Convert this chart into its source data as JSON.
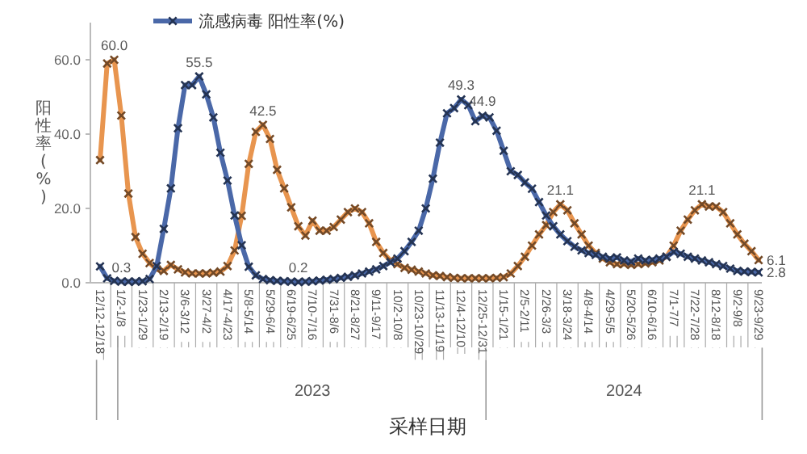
{
  "chart_data": {
    "type": "line",
    "xlabel": "采样日期",
    "ylabel": "阳性率(%)",
    "categories": [
      "12/12-12/18",
      null,
      null,
      "1/2-1/8",
      null,
      null,
      "1/23-1/29",
      null,
      null,
      "2/13-2/19",
      null,
      null,
      "3/6-3/12",
      null,
      null,
      "3/27-4/2",
      null,
      null,
      "4/17-4/23",
      null,
      null,
      "5/8-5/14",
      null,
      null,
      "5/29-6/4",
      null,
      null,
      "6/19-6/25",
      null,
      null,
      "7/10-7/16",
      null,
      null,
      "7/31-8/6",
      null,
      null,
      "8/21-8/27",
      null,
      null,
      "9/11-9/17",
      null,
      null,
      "10/2-10/8",
      null,
      null,
      "10/23-10/29",
      null,
      null,
      "11/13-11/19",
      null,
      null,
      "12/4-12/10",
      null,
      null,
      "12/25-12/31",
      null,
      null,
      "1/15-1/21",
      null,
      null,
      "2/5-2/11",
      null,
      null,
      "2/26-3/3",
      null,
      null,
      "3/18-3/24",
      null,
      null,
      "4/8-4/14",
      null,
      null,
      "4/29-5/5",
      null,
      null,
      "5/20-5/26",
      null,
      null,
      "6/10-6/16",
      null,
      null,
      "7/1-7/7",
      null,
      null,
      "7/22-7/28",
      null,
      null,
      "8/12-8/18",
      null,
      null,
      "9/2-9/8",
      null,
      null,
      "9/23-9/29"
    ],
    "series": [
      {
        "color": "#e8954f",
        "values": [
          33,
          59,
          60.0,
          45,
          24,
          12.3,
          7.8,
          5.3,
          3.6,
          3.2,
          4.8,
          3.6,
          2.8,
          2.5,
          2.5,
          2.5,
          2.7,
          3.0,
          4.5,
          8.7,
          18,
          32,
          40.6,
          42.5,
          38.7,
          30.4,
          25.4,
          20.3,
          15.2,
          12.7,
          16.7,
          14,
          14,
          15,
          17,
          19,
          20,
          19,
          16,
          11,
          8,
          6,
          5,
          4,
          3.5,
          3,
          2.5,
          2,
          1.8,
          1.5,
          1.3,
          1.2,
          1.2,
          1.2,
          1.2,
          1.2,
          1.3,
          1.5,
          2.5,
          4.5,
          7,
          10,
          13,
          15.5,
          19,
          21.1,
          19.5,
          16,
          13,
          10,
          8,
          6.5,
          5.5,
          5,
          5,
          4.8,
          5,
          5.2,
          5.5,
          6,
          7,
          10,
          14,
          17,
          19.5,
          21.1,
          20.5,
          20.5,
          19,
          16,
          13,
          10.5,
          8.5,
          6.1
        ],
        "value_labels": [
          null,
          null,
          "60.0",
          null,
          null,
          null,
          null,
          null,
          null,
          null,
          null,
          null,
          null,
          null,
          null,
          null,
          null,
          null,
          null,
          null,
          null,
          null,
          null,
          "42.5",
          null,
          null,
          null,
          null,
          null,
          null,
          null,
          null,
          null,
          null,
          null,
          null,
          null,
          null,
          null,
          null,
          null,
          null,
          null,
          null,
          null,
          null,
          null,
          null,
          null,
          null,
          null,
          null,
          null,
          null,
          null,
          null,
          null,
          null,
          null,
          null,
          null,
          null,
          null,
          null,
          null,
          "21.1",
          null,
          null,
          null,
          null,
          null,
          null,
          null,
          null,
          null,
          null,
          null,
          null,
          null,
          null,
          null,
          null,
          null,
          null,
          null,
          "21.1",
          null,
          null,
          null,
          null,
          null,
          null,
          null,
          "6.1"
        ]
      },
      {
        "name": "流感病毒 阳性率(%)",
        "color": "#4a68a8",
        "values": [
          4.4,
          1.2,
          0.5,
          0.3,
          0.3,
          0.3,
          0.4,
          1,
          4.5,
          14.5,
          25.4,
          41.6,
          53.2,
          53.2,
          55.5,
          50.7,
          44.5,
          35,
          27.5,
          18.1,
          10.1,
          4.3,
          2,
          1,
          0.7,
          0.5,
          0.4,
          0.3,
          0.2,
          0.3,
          0.4,
          0.6,
          0.8,
          1,
          1.3,
          1.6,
          2,
          2.5,
          3,
          3.6,
          4.5,
          5.5,
          6.5,
          8.5,
          11,
          14,
          20,
          28,
          37.7,
          45.6,
          47,
          49.3,
          47.8,
          43.5,
          44.9,
          44.5,
          40.9,
          35.5,
          30,
          29,
          27,
          25.3,
          21.7,
          18.1,
          15.2,
          13,
          11.2,
          9.7,
          8.7,
          8,
          7.5,
          7,
          6.5,
          6.8,
          6,
          5.7,
          6.5,
          6,
          6.2,
          6.5,
          7,
          8.3,
          7.8,
          7,
          6.5,
          6,
          5.5,
          5,
          4.5,
          3.8,
          3.2,
          3,
          2.9,
          2.8
        ],
        "value_labels": [
          null,
          null,
          null,
          "0.3",
          null,
          null,
          null,
          null,
          null,
          null,
          null,
          null,
          null,
          null,
          "55.5",
          null,
          null,
          null,
          null,
          null,
          null,
          null,
          null,
          null,
          null,
          null,
          null,
          null,
          "0.2",
          null,
          null,
          null,
          null,
          null,
          null,
          null,
          null,
          null,
          null,
          null,
          null,
          null,
          null,
          null,
          null,
          null,
          null,
          null,
          null,
          null,
          null,
          "49.3",
          null,
          null,
          "44.9",
          null,
          null,
          null,
          null,
          null,
          null,
          null,
          null,
          null,
          null,
          null,
          null,
          null,
          null,
          null,
          null,
          null,
          null,
          null,
          null,
          null,
          null,
          null,
          null,
          null,
          null,
          null,
          null,
          null,
          null,
          null,
          null,
          null,
          null,
          null,
          null,
          null,
          null,
          "2.8"
        ]
      }
    ],
    "ylim": [
      0,
      70
    ],
    "yticks": [
      {
        "value": 0,
        "label": "0.0"
      },
      {
        "value": 20,
        "label": "20.0"
      },
      {
        "value": 40,
        "label": "40.0"
      },
      {
        "value": 60,
        "label": "60.0"
      }
    ],
    "annotations": [
      "2023",
      "2024"
    ],
    "marker": "cross",
    "line_style": "solid",
    "legend": "top",
    "grid": false
  }
}
